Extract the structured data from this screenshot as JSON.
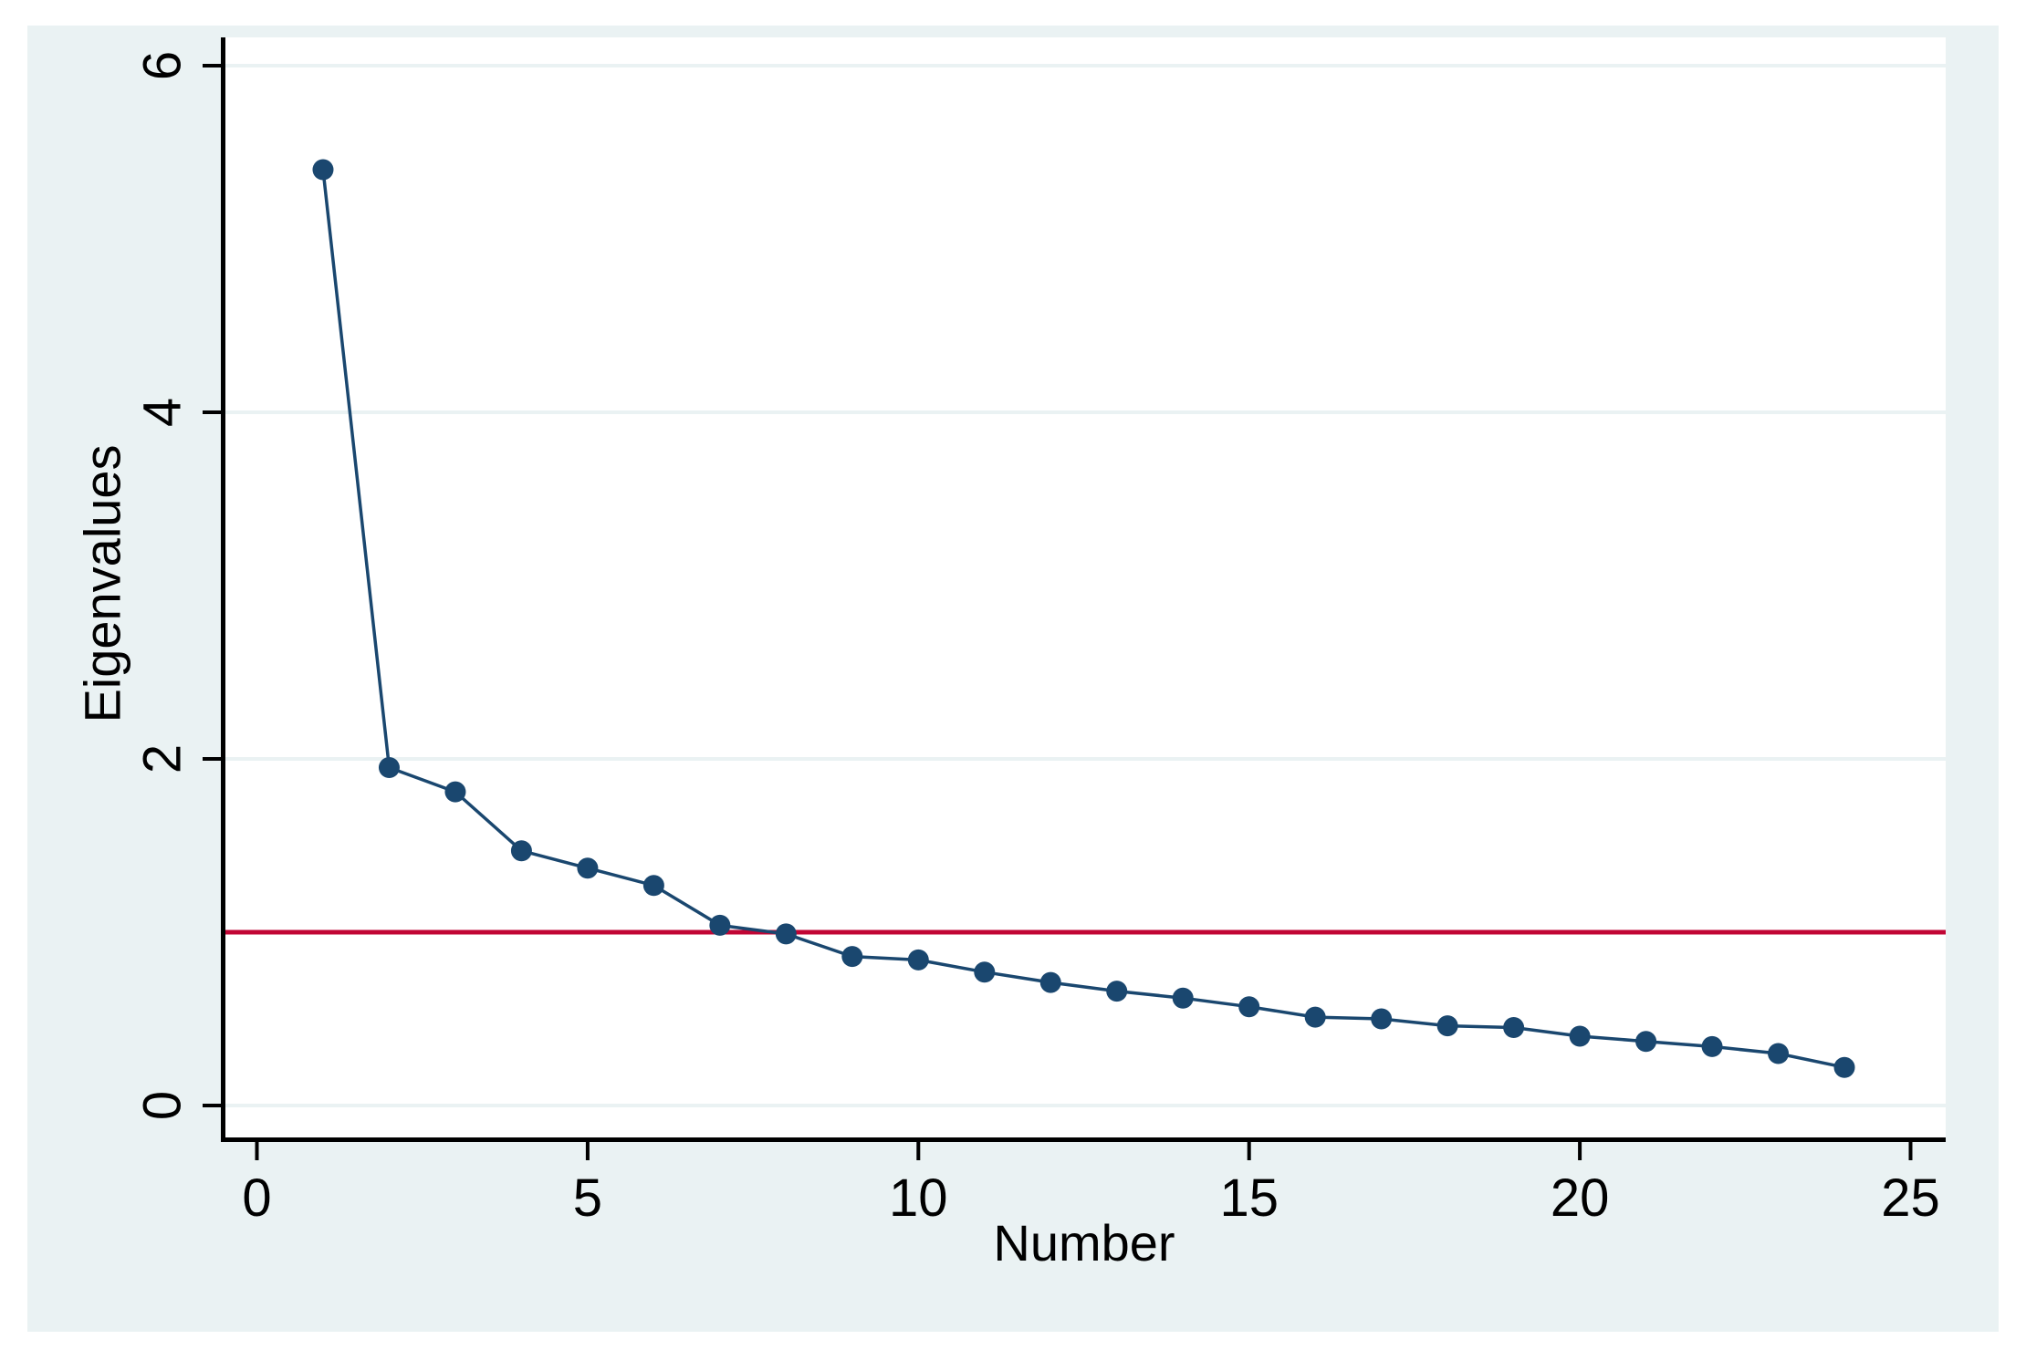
{
  "chart_data": {
    "type": "line",
    "title": "",
    "xlabel": "Number",
    "ylabel": "Eigenvalues",
    "x": [
      1,
      2,
      3,
      4,
      5,
      6,
      7,
      8,
      9,
      10,
      11,
      12,
      13,
      14,
      15,
      16,
      17,
      18,
      19,
      20,
      21,
      22,
      23,
      24
    ],
    "series": [
      {
        "name": "Eigenvalues",
        "values": [
          5.4,
          1.95,
          1.81,
          1.47,
          1.37,
          1.27,
          1.04,
          0.99,
          0.86,
          0.84,
          0.77,
          0.71,
          0.66,
          0.62,
          0.57,
          0.51,
          0.5,
          0.46,
          0.45,
          0.4,
          0.37,
          0.34,
          0.3,
          0.22
        ]
      }
    ],
    "reference_line": {
      "axis": "y",
      "value": 1
    },
    "x_ticks": [
      0,
      5,
      10,
      15,
      20,
      25
    ],
    "y_ticks": [
      0,
      2,
      4,
      6
    ],
    "xlim": [
      0,
      25
    ],
    "ylim": [
      0,
      6
    ],
    "grid": "horizontal",
    "legend": "none"
  },
  "colors": {
    "figure_background": "#eaf2f3",
    "plot_background": "#ffffff",
    "gridline": "#eaf2f3",
    "series": "#1a476f",
    "reference_line": "#c10534",
    "axis": "#000000"
  }
}
